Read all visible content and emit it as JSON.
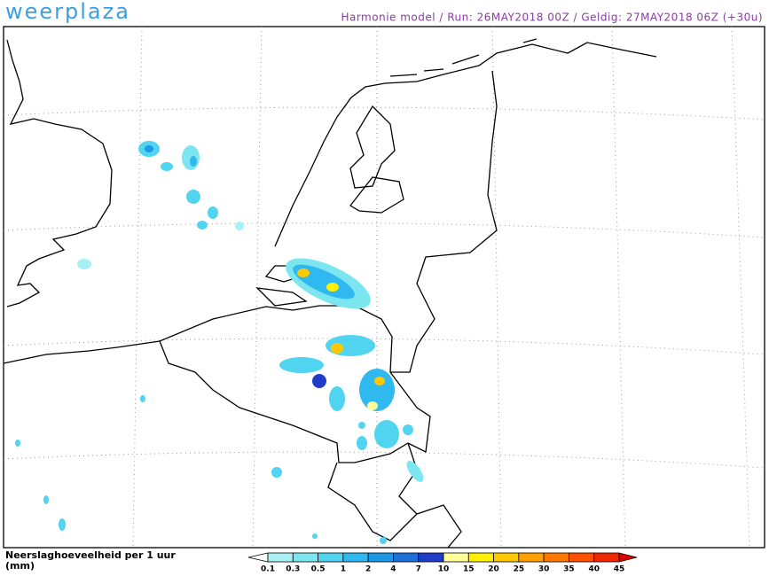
{
  "header": {
    "logo": "weerplaza",
    "info": "Harmonie model / Run: 26MAY2018 00Z / Geldig: 27MAY2018 06Z (+30u)"
  },
  "legend": {
    "title": [
      "Neerslaghoeveelheid per 1 uur",
      "(mm)"
    ],
    "levels": [
      0.1,
      0.3,
      0.5,
      1,
      2,
      4,
      7,
      10,
      15,
      20,
      25,
      30,
      35,
      40,
      45
    ],
    "colors": [
      "#ffffff",
      "#a8f0f4",
      "#7ce6f0",
      "#50d4f0",
      "#30b8f0",
      "#1e98e6",
      "#1e70d8",
      "#1e3cc8",
      "#ffff9a",
      "#fff000",
      "#ffc800",
      "#ffa000",
      "#ff7800",
      "#ff5000",
      "#f02800",
      "#dc0000"
    ]
  }
}
